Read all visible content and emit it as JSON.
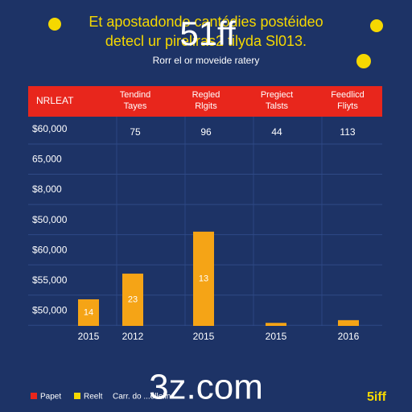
{
  "chart_data": {
    "type": "bar",
    "title": [
      "Et apostadonde cantódies postéideo",
      "detecl ur pireliras2 tilyda Sl013."
    ],
    "subtitle": "Rorr el or moveide ratery",
    "overlay": "51ff",
    "watermark": "3z.com",
    "table": {
      "header": [
        "NRLEAT",
        [
          "Tendind",
          "Tayes"
        ],
        [
          "Regled",
          "Rlgits"
        ],
        [
          "Pregiect",
          "Talsts"
        ],
        [
          "Feedlicd",
          "Fliyts"
        ]
      ],
      "row": [
        "75",
        "96",
        "44",
        "113"
      ]
    },
    "categories": [
      "2015",
      "2012",
      "2015",
      "2015",
      "2016"
    ],
    "values": [
      0.88,
      1.73,
      3.12,
      0.1,
      0.19
    ],
    "bar_labels": [
      "14",
      "23",
      "13",
      null,
      null
    ],
    "color": "#f5a416",
    "ylim": [
      0,
      6.5
    ],
    "yticks": [
      {
        "value": 0.5,
        "label": "$50,000"
      },
      {
        "value": 1.5,
        "label": "$55,000"
      },
      {
        "value": 2.5,
        "label": "$60,000"
      },
      {
        "value": 3.5,
        "label": "$50,000"
      },
      {
        "value": 4.5,
        "label": "$8,000"
      },
      {
        "value": 5.5,
        "label": "65,000"
      },
      {
        "value": 6.5,
        "label": "$60,000"
      }
    ],
    "grid": true,
    "legend": [
      "Papet",
      "Reelt",
      "Carr. do ...ellelin..."
    ],
    "logo": "5iff"
  }
}
